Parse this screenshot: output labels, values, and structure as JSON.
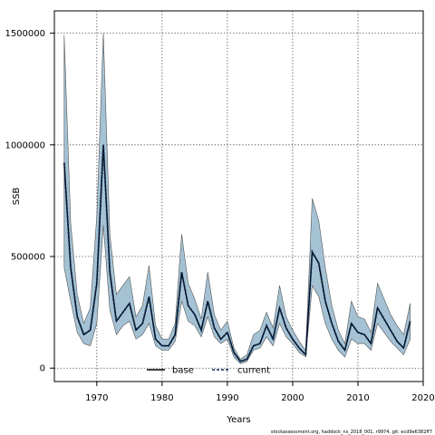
{
  "chart_data": {
    "type": "line",
    "xlabel": "Years",
    "ylabel": "SSB",
    "xlim": [
      1963.5,
      2020
    ],
    "ylim": [
      -60000,
      1600000
    ],
    "xticks": [
      1970,
      1980,
      1990,
      2000,
      2010,
      2020
    ],
    "yticks": [
      0,
      500000,
      1000000,
      1500000
    ],
    "grid": true,
    "legend_placement": "bottom-center",
    "x": [
      1965,
      1966,
      1967,
      1968,
      1969,
      1970,
      1971,
      1972,
      1973,
      1974,
      1975,
      1976,
      1977,
      1978,
      1979,
      1980,
      1981,
      1982,
      1983,
      1984,
      1985,
      1986,
      1987,
      1988,
      1989,
      1990,
      1991,
      1992,
      1993,
      1994,
      1995,
      1996,
      1997,
      1998,
      1999,
      2000,
      2001,
      2002,
      2003,
      2004,
      2005,
      2006,
      2007,
      2008,
      2009,
      2010,
      2011,
      2012,
      2013,
      2014,
      2015,
      2016,
      2017,
      2018
    ],
    "series": [
      {
        "name": "base",
        "values": [
          920000,
          450000,
          230000,
          150000,
          170000,
          380000,
          1000000,
          430000,
          210000,
          250000,
          290000,
          170000,
          200000,
          320000,
          130000,
          100000,
          100000,
          150000,
          430000,
          280000,
          240000,
          170000,
          300000,
          180000,
          130000,
          160000,
          70000,
          30000,
          40000,
          100000,
          110000,
          190000,
          130000,
          270000,
          180000,
          130000,
          90000,
          60000,
          520000,
          470000,
          300000,
          200000,
          120000,
          80000,
          200000,
          160000,
          150000,
          110000,
          270000,
          220000,
          170000,
          120000,
          90000,
          210000
        ],
        "lower": [
          450000,
          300000,
          160000,
          110000,
          100000,
          200000,
          640000,
          260000,
          150000,
          190000,
          210000,
          130000,
          150000,
          200000,
          100000,
          80000,
          80000,
          120000,
          300000,
          210000,
          190000,
          140000,
          230000,
          140000,
          110000,
          130000,
          50000,
          20000,
          30000,
          80000,
          90000,
          140000,
          100000,
          200000,
          140000,
          110000,
          70000,
          50000,
          370000,
          320000,
          200000,
          130000,
          80000,
          50000,
          130000,
          110000,
          110000,
          80000,
          200000,
          160000,
          120000,
          90000,
          60000,
          130000
        ],
        "upper": [
          1490000,
          650000,
          330000,
          200000,
          270000,
          680000,
          1500000,
          600000,
          330000,
          370000,
          410000,
          230000,
          280000,
          460000,
          190000,
          130000,
          130000,
          200000,
          600000,
          380000,
          310000,
          220000,
          430000,
          240000,
          170000,
          210000,
          90000,
          40000,
          60000,
          150000,
          170000,
          250000,
          180000,
          370000,
          230000,
          170000,
          120000,
          80000,
          760000,
          660000,
          450000,
          280000,
          170000,
          110000,
          300000,
          230000,
          220000,
          160000,
          380000,
          310000,
          240000,
          190000,
          150000,
          290000
        ]
      },
      {
        "name": "current",
        "values": [
          920000,
          450000,
          230000,
          150000,
          170000,
          380000,
          1000000,
          430000,
          210000,
          250000,
          290000,
          170000,
          200000,
          320000,
          130000,
          100000,
          100000,
          150000,
          430000,
          280000,
          240000,
          170000,
          300000,
          180000,
          130000,
          160000,
          70000,
          30000,
          40000,
          100000,
          110000,
          190000,
          130000,
          270000,
          180000,
          130000,
          90000,
          60000,
          520000,
          470000,
          300000,
          200000,
          120000,
          80000,
          200000,
          160000,
          150000,
          110000,
          270000,
          220000,
          170000,
          120000,
          90000,
          210000
        ]
      }
    ],
    "colors": {
      "band": "#a4c2d4",
      "band_edge": "#555555",
      "base": "#000000",
      "current": "#0b2b5e"
    },
    "footer": "stockassessment.org,  haddock_ns_2018_001,  r9974,  git: ecd9e6382ff7"
  }
}
